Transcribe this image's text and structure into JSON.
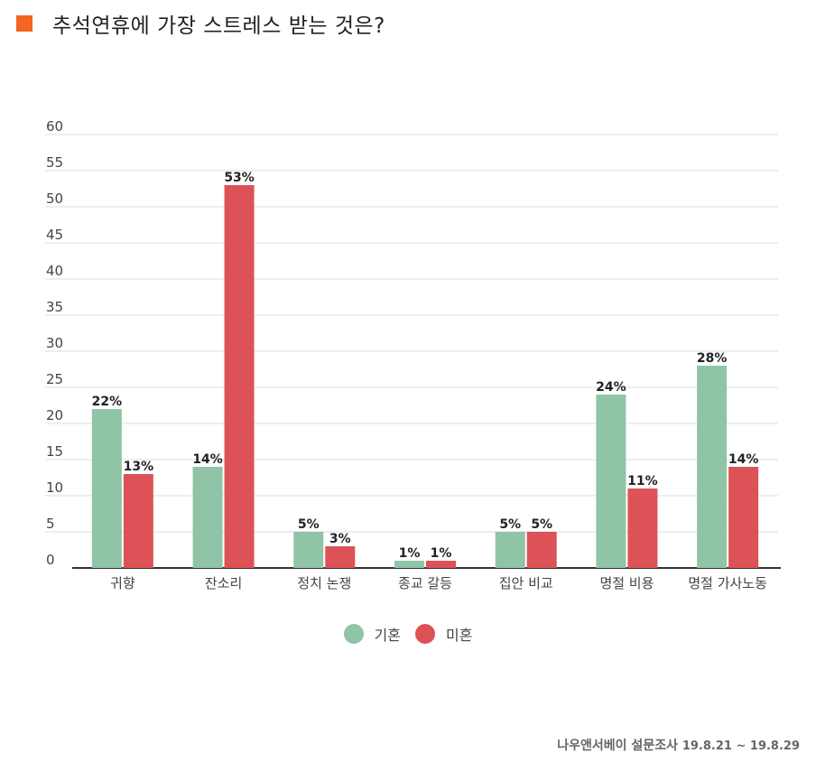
{
  "header": {
    "title": "추석연휴에 가장 스트레스 받는 것은?"
  },
  "colors": {
    "accent": "#f26522",
    "married": "#8fc4a6",
    "single": "#dd5257"
  },
  "chart_data": {
    "type": "bar",
    "title": "추석연휴에 가장 스트레스 받는 것은?",
    "xlabel": "",
    "ylabel": "",
    "categories": [
      "귀향",
      "잔소리",
      "정치 논쟁",
      "종교 갈등",
      "집안 비교",
      "명절 비용",
      "명절 가사노동"
    ],
    "series": [
      {
        "name": "기혼",
        "values": [
          22,
          14,
          5,
          1,
          5,
          24,
          28
        ],
        "labels": [
          "22%",
          "14%",
          "5%",
          "1%",
          "5%",
          "24%",
          "28%"
        ]
      },
      {
        "name": "미혼",
        "values": [
          13,
          53,
          3,
          1,
          5,
          11,
          14
        ],
        "labels": [
          "13%",
          "53%",
          "3%",
          "1%",
          "5%",
          "11%",
          "14%"
        ]
      }
    ],
    "ylim": [
      0,
      60
    ],
    "yticks": [
      0,
      5,
      10,
      15,
      20,
      25,
      30,
      35,
      40,
      45,
      50,
      55,
      60
    ],
    "grid": true,
    "legend": "bottom"
  },
  "legend": {
    "items": [
      "기혼",
      "미혼"
    ]
  },
  "source": {
    "name": "나우앤서베이 설문조사",
    "range": "19.8.21 ~ 19.8.29"
  }
}
